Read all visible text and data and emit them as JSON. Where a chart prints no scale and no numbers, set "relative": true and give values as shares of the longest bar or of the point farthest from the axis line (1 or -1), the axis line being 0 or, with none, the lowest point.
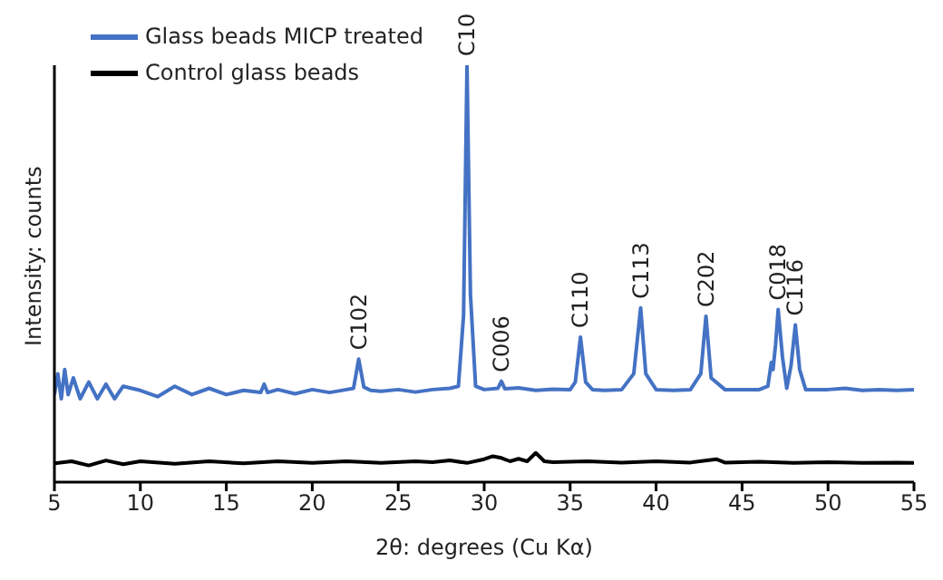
{
  "chart_data": {
    "type": "line",
    "relative": true,
    "xlabel": "2θ: degrees (Cu Kα)",
    "ylabel": "Intensity: counts",
    "xlim": [
      5,
      55
    ],
    "xticks": [
      5,
      10,
      15,
      20,
      25,
      30,
      35,
      40,
      45,
      50,
      55
    ],
    "legend": "top left",
    "grid": false,
    "marker": "none",
    "line_style": "solid",
    "series": [
      {
        "name": "Glass beads MICP treated",
        "color": "#4472c4",
        "x": [
          5,
          5.2,
          5.4,
          5.6,
          5.8,
          6.1,
          6.5,
          7,
          7.5,
          8,
          8.5,
          9,
          10,
          11,
          12,
          13,
          14,
          15,
          16,
          17,
          17.2,
          17.4,
          18,
          19,
          20,
          21,
          22,
          22.4,
          22.7,
          23.0,
          23.4,
          24,
          25,
          26,
          27,
          28,
          28.5,
          28.8,
          29.0,
          29.2,
          29.5,
          30,
          30.8,
          31.0,
          31.2,
          32,
          33,
          34,
          35,
          35.3,
          35.6,
          35.9,
          36.3,
          37,
          38,
          38.7,
          39.1,
          39.4,
          40,
          41,
          42,
          42.6,
          42.9,
          43.2,
          44,
          45,
          46,
          46.5,
          46.7,
          46.8,
          46.95,
          47.1,
          47.35,
          47.6,
          47.85,
          48.1,
          48.35,
          48.7,
          50,
          51,
          52,
          53,
          54,
          55
        ],
        "values": [
          0.21,
          0.26,
          0.2,
          0.27,
          0.21,
          0.25,
          0.2,
          0.24,
          0.2,
          0.235,
          0.2,
          0.23,
          0.22,
          0.205,
          0.23,
          0.21,
          0.225,
          0.21,
          0.22,
          0.215,
          0.235,
          0.215,
          0.222,
          0.212,
          0.222,
          0.215,
          0.222,
          0.225,
          0.295,
          0.228,
          0.22,
          0.218,
          0.222,
          0.216,
          0.222,
          0.225,
          0.23,
          0.4,
          1.0,
          0.45,
          0.23,
          0.222,
          0.225,
          0.242,
          0.224,
          0.226,
          0.22,
          0.223,
          0.222,
          0.24,
          0.348,
          0.24,
          0.222,
          0.22,
          0.222,
          0.26,
          0.418,
          0.26,
          0.222,
          0.22,
          0.222,
          0.26,
          0.398,
          0.25,
          0.222,
          0.222,
          0.222,
          0.23,
          0.287,
          0.27,
          0.33,
          0.414,
          0.3,
          0.225,
          0.28,
          0.377,
          0.27,
          0.222,
          0.222,
          0.225,
          0.22,
          0.222,
          0.22,
          0.222
        ]
      },
      {
        "name": "Control glass beads",
        "color": "#000000",
        "x": [
          5,
          6,
          7,
          8,
          9,
          10,
          12,
          14,
          16,
          18,
          20,
          22,
          24,
          26,
          27,
          28,
          29,
          30,
          30.5,
          31,
          31.5,
          32,
          32.5,
          33,
          33.5,
          34,
          36,
          38,
          40,
          42,
          43.5,
          44,
          46,
          48,
          50,
          52,
          54,
          55
        ],
        "values": [
          0.045,
          0.05,
          0.04,
          0.052,
          0.043,
          0.05,
          0.044,
          0.05,
          0.045,
          0.05,
          0.046,
          0.05,
          0.046,
          0.05,
          0.048,
          0.052,
          0.046,
          0.055,
          0.062,
          0.058,
          0.05,
          0.056,
          0.05,
          0.07,
          0.05,
          0.048,
          0.05,
          0.047,
          0.05,
          0.047,
          0.055,
          0.047,
          0.049,
          0.046,
          0.048,
          0.046,
          0.047,
          0.046
        ]
      }
    ],
    "annotations": [
      {
        "text": "C102",
        "x": 22.7,
        "y": 0.295
      },
      {
        "text": "C10",
        "x": 29.0,
        "y": 1.0
      },
      {
        "text": "C006",
        "x": 31.0,
        "y": 0.242
      },
      {
        "text": "C110",
        "x": 35.6,
        "y": 0.348
      },
      {
        "text": "C113",
        "x": 39.1,
        "y": 0.418
      },
      {
        "text": "C202",
        "x": 42.9,
        "y": 0.398
      },
      {
        "text": "C018",
        "x": 47.1,
        "y": 0.414
      },
      {
        "text": "C116",
        "x": 48.1,
        "y": 0.377
      }
    ]
  }
}
